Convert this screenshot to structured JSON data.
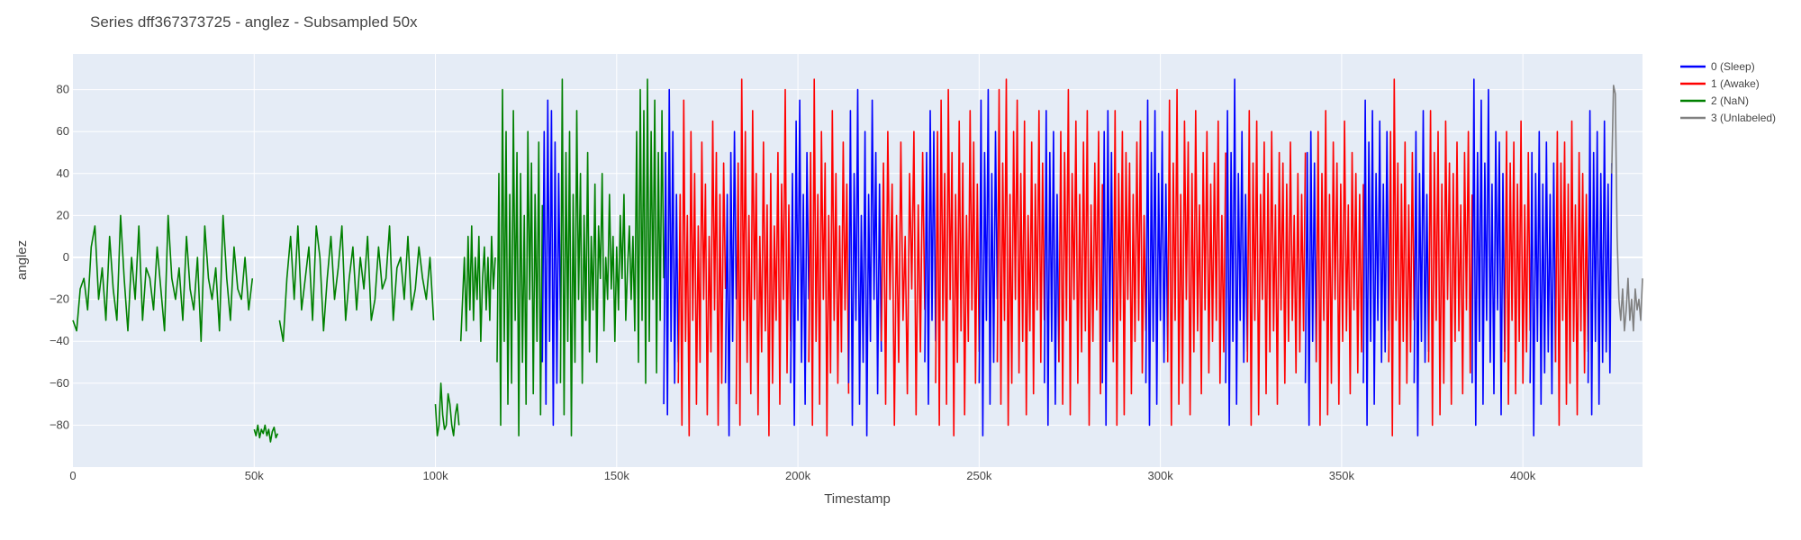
{
  "chart_data": {
    "type": "line",
    "title": "Series dff367373725 - anglez - Subsampled 50x",
    "xlabel": "Timestamp",
    "ylabel": "anglez",
    "xlim": [
      0,
      433000
    ],
    "ylim": [
      -100,
      97
    ],
    "grid": true,
    "legend_position": "right",
    "background_color": "#e5ecf6",
    "x_ticks": [
      {
        "value": 0,
        "label": "0"
      },
      {
        "value": 50000,
        "label": "50k"
      },
      {
        "value": 100000,
        "label": "100k"
      },
      {
        "value": 150000,
        "label": "150k"
      },
      {
        "value": 200000,
        "label": "200k"
      },
      {
        "value": 250000,
        "label": "250k"
      },
      {
        "value": 300000,
        "label": "300k"
      },
      {
        "value": 350000,
        "label": "350k"
      },
      {
        "value": 400000,
        "label": "400k"
      }
    ],
    "y_ticks": [
      {
        "value": 80,
        "label": "80"
      },
      {
        "value": 60,
        "label": "60"
      },
      {
        "value": 40,
        "label": "40"
      },
      {
        "value": 20,
        "label": "20"
      },
      {
        "value": 0,
        "label": "0"
      },
      {
        "value": -20,
        "label": "−20"
      },
      {
        "value": -40,
        "label": "−40"
      },
      {
        "value": -60,
        "label": "−60"
      },
      {
        "value": -80,
        "label": "−80"
      }
    ],
    "series": [
      {
        "name": "0 (Sleep)",
        "color": "#0000ff"
      },
      {
        "name": "1 (Awake)",
        "color": "#ff0000"
      },
      {
        "name": "2 (NaN)",
        "color": "#008000"
      },
      {
        "name": "3 (Unlabeled)",
        "color": "#808080"
      }
    ],
    "segments": [
      {
        "series": 2,
        "x_start": 0,
        "x_end": 49500,
        "values": [
          -30,
          -35,
          -15,
          -10,
          -25,
          5,
          15,
          -20,
          -5,
          -30,
          10,
          -15,
          -30,
          20,
          -10,
          -35,
          0,
          -20,
          15,
          -30,
          -5,
          -10,
          -25,
          5,
          -15,
          -35,
          20,
          -10,
          -20,
          -5,
          -30,
          10,
          -15,
          -25,
          0,
          -40,
          15,
          -10,
          -20,
          -5,
          -35,
          20,
          -10,
          -30,
          5,
          -15,
          -20,
          0,
          -25,
          -10
        ]
      },
      {
        "series": 2,
        "x_start": 50000,
        "x_end": 56500,
        "values": [
          -82,
          -85,
          -80,
          -86,
          -82,
          -84,
          -80,
          -85,
          -82,
          -88,
          -83,
          -81,
          -86,
          -84
        ]
      },
      {
        "series": 2,
        "x_start": 57000,
        "x_end": 99500,
        "values": [
          -30,
          -40,
          -10,
          10,
          -20,
          15,
          -25,
          -10,
          5,
          -30,
          15,
          0,
          -35,
          -10,
          10,
          -20,
          -5,
          15,
          -30,
          -10,
          5,
          -25,
          0,
          -15,
          10,
          -30,
          -20,
          5,
          -15,
          -10,
          15,
          -30,
          -5,
          0,
          -20,
          10,
          -25,
          -15,
          5,
          -10,
          -20,
          0,
          -30
        ]
      },
      {
        "series": 2,
        "x_start": 100000,
        "x_end": 106500,
        "values": [
          -70,
          -85,
          -80,
          -60,
          -75,
          -82,
          -80,
          -65,
          -70,
          -80,
          -85,
          -75,
          -70,
          -80
        ]
      },
      {
        "series": 2,
        "x_start": 107000,
        "x_end": 116500,
        "values": [
          -40,
          -20,
          0,
          -35,
          10,
          -25,
          15,
          -30,
          0,
          -20,
          10,
          -40,
          -10,
          5,
          -25,
          0,
          -30,
          10,
          -15,
          0
        ]
      },
      {
        "series": 2,
        "x_start": 117000,
        "x_end": 129500,
        "values": [
          -50,
          40,
          -80,
          80,
          -40,
          60,
          -70,
          30,
          -60,
          70,
          -30,
          50,
          -85,
          40,
          -50,
          20,
          -70,
          60,
          -20,
          45,
          -65,
          30,
          -40,
          55,
          -75,
          25
        ]
      },
      {
        "series": 0,
        "x_start": 129500,
        "x_end": 134500,
        "values": [
          -50,
          60,
          -70,
          75,
          -40,
          70,
          -80,
          55,
          -60,
          40,
          -30
        ]
      },
      {
        "series": 2,
        "x_start": 134500,
        "x_end": 163000,
        "values": [
          -60,
          85,
          -75,
          50,
          -40,
          60,
          -85,
          30,
          -50,
          70,
          -20,
          40,
          -60,
          20,
          -30,
          50,
          -45,
          10,
          -25,
          35,
          -50,
          15,
          -10,
          40,
          -35,
          0,
          -20,
          30,
          -15,
          10,
          -40,
          5,
          -25,
          20,
          -10,
          30,
          -30,
          -5,
          15,
          -20,
          10,
          -35,
          60,
          -50,
          80,
          -30,
          70,
          -60,
          85,
          -40,
          60,
          -20,
          75,
          -55,
          50,
          -30,
          70,
          -10
        ]
      },
      {
        "series": 0,
        "x_start": 163000,
        "x_end": 167000,
        "values": [
          -70,
          50,
          -75,
          80,
          -40,
          60,
          -60,
          30,
          -50
        ]
      },
      {
        "series": 1,
        "x_start": 167000,
        "x_end": 180000,
        "values": [
          -60,
          30,
          -80,
          75,
          -40,
          20,
          -85,
          60,
          -30,
          40,
          -70,
          15,
          -50,
          55,
          -20,
          35,
          -75,
          10,
          -45,
          65,
          -25,
          50,
          -80,
          30,
          -60,
          45,
          -15
        ]
      },
      {
        "series": 0,
        "x_start": 180000,
        "x_end": 183000,
        "values": [
          -60,
          30,
          -85,
          50,
          -40,
          60,
          -20
        ]
      },
      {
        "series": 1,
        "x_start": 183000,
        "x_end": 198000,
        "values": [
          -70,
          45,
          -80,
          85,
          -30,
          60,
          -50,
          20,
          -65,
          70,
          -20,
          40,
          -75,
          10,
          -45,
          55,
          -35,
          25,
          -85,
          40,
          -60,
          15,
          -30,
          50,
          -70,
          35,
          -20,
          80,
          -55,
          25,
          -40
        ]
      },
      {
        "series": 0,
        "x_start": 198000,
        "x_end": 203000,
        "values": [
          -60,
          40,
          -80,
          65,
          -30,
          75,
          -50,
          30,
          -70,
          50,
          -20
        ]
      },
      {
        "series": 1,
        "x_start": 203000,
        "x_end": 214000,
        "values": [
          -50,
          50,
          -80,
          85,
          -40,
          30,
          -70,
          60,
          -20,
          45,
          -85,
          20,
          -55,
          70,
          -30,
          40,
          -60,
          15,
          -45,
          55,
          -25,
          35,
          -65
        ]
      },
      {
        "series": 0,
        "x_start": 214000,
        "x_end": 223000,
        "values": [
          -60,
          70,
          -80,
          40,
          -30,
          80,
          -70,
          20,
          -50,
          60,
          -85,
          30,
          -40,
          75,
          -20,
          50,
          -65,
          35,
          -45
        ]
      },
      {
        "series": 1,
        "x_start": 223000,
        "x_end": 235000,
        "values": [
          -40,
          45,
          -70,
          60,
          -20,
          35,
          -80,
          20,
          -50,
          55,
          -30,
          10,
          -65,
          40,
          -15,
          60,
          -75,
          25,
          -45,
          50,
          -25
        ]
      },
      {
        "series": 0,
        "x_start": 235000,
        "x_end": 238000,
        "values": [
          -50,
          50,
          -70,
          70,
          -30,
          60,
          -40
        ]
      },
      {
        "series": 1,
        "x_start": 238000,
        "x_end": 250000,
        "values": [
          -60,
          60,
          -80,
          75,
          -30,
          40,
          -70,
          80,
          -20,
          50,
          -85,
          30,
          -50,
          65,
          -35,
          45,
          -75,
          20,
          -40,
          70,
          -25,
          55,
          -60,
          35,
          -45
        ]
      },
      {
        "series": 0,
        "x_start": 250000,
        "x_end": 255000,
        "values": [
          -60,
          75,
          -85,
          50,
          -30,
          80,
          -70,
          40,
          -50,
          60,
          -20
        ]
      },
      {
        "series": 1,
        "x_start": 255000,
        "x_end": 268000,
        "values": [
          -50,
          80,
          -70,
          45,
          -30,
          85,
          -80,
          30,
          -60,
          60,
          -20,
          75,
          -55,
          40,
          -40,
          65,
          -75,
          20,
          -35,
          55,
          -65,
          35,
          -25,
          70,
          -50,
          45,
          -30
        ]
      },
      {
        "series": 0,
        "x_start": 268000,
        "x_end": 272000,
        "values": [
          -60,
          70,
          -80,
          50,
          -40,
          60,
          -70,
          30,
          -50
        ]
      },
      {
        "series": 1,
        "x_start": 272000,
        "x_end": 284000,
        "values": [
          -50,
          60,
          -70,
          50,
          -30,
          80,
          -75,
          40,
          -20,
          65,
          -60,
          30,
          -45,
          55,
          -35,
          70,
          -80,
          25,
          -40,
          45,
          -25,
          60,
          -65,
          35
        ]
      },
      {
        "series": 0,
        "x_start": 284000,
        "x_end": 287000,
        "values": [
          -60,
          60,
          -80,
          70,
          -40,
          50,
          -50
        ]
      },
      {
        "series": 1,
        "x_start": 287000,
        "x_end": 296000,
        "values": [
          -50,
          70,
          -80,
          40,
          -30,
          60,
          -75,
          50,
          -20,
          45,
          -65,
          30,
          -40,
          55,
          -30,
          65,
          -55,
          20,
          -35
        ]
      },
      {
        "series": 0,
        "x_start": 296000,
        "x_end": 302000,
        "values": [
          -60,
          75,
          -80,
          50,
          -40,
          70,
          -70,
          40,
          -30,
          60,
          -50,
          35,
          -45
        ]
      },
      {
        "series": 1,
        "x_start": 302000,
        "x_end": 318000,
        "values": [
          -50,
          75,
          -80,
          45,
          -30,
          80,
          -70,
          30,
          -60,
          65,
          -20,
          55,
          -75,
          40,
          -45,
          70,
          -35,
          25,
          -65,
          50,
          -25,
          60,
          -55,
          35,
          -40,
          45,
          -30,
          65,
          -60,
          20,
          -45,
          50
        ]
      },
      {
        "series": 0,
        "x_start": 318000,
        "x_end": 324000,
        "values": [
          -60,
          70,
          -80,
          50,
          -40,
          85,
          -70,
          40,
          -30,
          60,
          -50,
          30,
          -45
        ]
      },
      {
        "series": 1,
        "x_start": 324000,
        "x_end": 340000,
        "values": [
          -50,
          70,
          -80,
          45,
          -30,
          65,
          -75,
          30,
          -20,
          55,
          -65,
          40,
          -45,
          60,
          -35,
          25,
          -70,
          50,
          -25,
          45,
          -60,
          35,
          -40,
          55,
          -30,
          20,
          -55,
          40,
          -45,
          30,
          -35,
          50
        ]
      },
      {
        "series": 0,
        "x_start": 340000,
        "x_end": 343000,
        "values": [
          -60,
          50,
          -80,
          60,
          -40,
          45,
          -50
        ]
      },
      {
        "series": 1,
        "x_start": 343000,
        "x_end": 356000,
        "values": [
          -50,
          60,
          -80,
          40,
          -30,
          70,
          -75,
          30,
          -60,
          55,
          -20,
          45,
          -70,
          35,
          -40,
          65,
          -35,
          25,
          -65,
          50,
          -25,
          40,
          -55,
          30,
          -45,
          35
        ]
      },
      {
        "series": 0,
        "x_start": 356000,
        "x_end": 363000,
        "values": [
          -60,
          75,
          -80,
          55,
          -40,
          70,
          -70,
          40,
          -30,
          65,
          -50,
          35,
          -45,
          60,
          -35
        ]
      },
      {
        "series": 1,
        "x_start": 363000,
        "x_end": 370000,
        "values": [
          -50,
          60,
          -85,
          85,
          -30,
          45,
          -70,
          35,
          -40,
          55,
          -60,
          25,
          -45,
          50,
          -30
        ]
      },
      {
        "series": 0,
        "x_start": 370000,
        "x_end": 374000,
        "values": [
          -60,
          60,
          -85,
          40,
          -40,
          70,
          -50,
          30,
          -45
        ]
      },
      {
        "series": 1,
        "x_start": 374000,
        "x_end": 386000,
        "values": [
          -50,
          70,
          -80,
          50,
          -30,
          60,
          -75,
          35,
          -60,
          65,
          -20,
          45,
          -70,
          40,
          -40,
          55,
          -35,
          25,
          -65,
          50,
          -25,
          60,
          -55,
          30
        ]
      },
      {
        "series": 0,
        "x_start": 386000,
        "x_end": 395000,
        "values": [
          -60,
          85,
          -80,
          50,
          -40,
          75,
          -70,
          45,
          -30,
          80,
          -50,
          35,
          -65,
          60,
          -25,
          55,
          -75,
          40,
          -45
        ]
      },
      {
        "series": 1,
        "x_start": 395000,
        "x_end": 402000,
        "values": [
          -50,
          60,
          -70,
          45,
          -30,
          55,
          -65,
          35,
          -40,
          65,
          -60,
          25,
          -45,
          50,
          -35
        ]
      },
      {
        "series": 0,
        "x_start": 402000,
        "x_end": 409000,
        "values": [
          -60,
          50,
          -85,
          40,
          -40,
          60,
          -70,
          35,
          -55,
          55,
          -45,
          30,
          -65,
          45,
          -50
        ]
      },
      {
        "series": 1,
        "x_start": 409000,
        "x_end": 418000,
        "values": [
          -50,
          60,
          -80,
          45,
          -30,
          55,
          -70,
          35,
          -60,
          65,
          -40,
          25,
          -75,
          50,
          -35,
          40,
          -55,
          30,
          -45
        ]
      },
      {
        "series": 0,
        "x_start": 418000,
        "x_end": 424500,
        "values": [
          -60,
          70,
          -75,
          50,
          -40,
          60,
          -70,
          40,
          -50,
          65,
          -45,
          35,
          -55,
          45
        ]
      },
      {
        "series": 3,
        "x_start": 424500,
        "x_end": 433000,
        "values": [
          40,
          82,
          78,
          10,
          -20,
          -30,
          -15,
          -35,
          -25,
          -10,
          -30,
          -20,
          -35,
          -15,
          -25,
          -20,
          -30,
          -10
        ]
      }
    ]
  }
}
